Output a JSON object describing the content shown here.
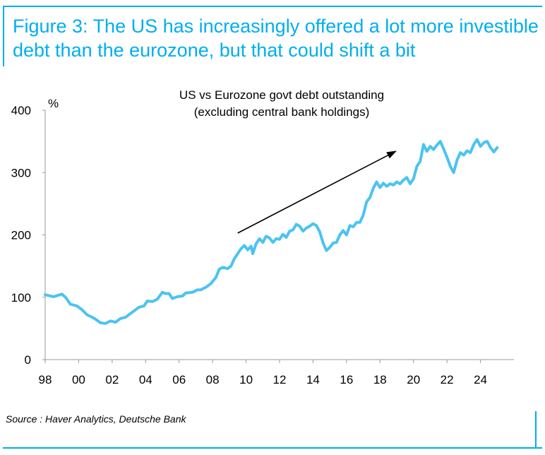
{
  "figure": {
    "title": "Figure 3: The US has increasingly offered a lot more investible debt than the eurozone, but that could shift a bit",
    "source": "Source : Haver Analytics, Deutsche Bank"
  },
  "colors": {
    "accent": "#00aeef",
    "series": "#4cc3f1",
    "axis": "#999999",
    "text": "#000000"
  },
  "chart_data": {
    "type": "line",
    "title_lines": [
      "US vs Eurozone govt debt outstanding",
      "(excluding central bank holdings)"
    ],
    "ylabel": "%",
    "xlabel": "",
    "xlim": [
      1998,
      2026
    ],
    "ylim": [
      0,
      400
    ],
    "yticks": [
      0,
      100,
      200,
      300,
      400
    ],
    "xticks": [
      {
        "value": 1998,
        "label": "98"
      },
      {
        "value": 2000,
        "label": "00"
      },
      {
        "value": 2002,
        "label": "02"
      },
      {
        "value": 2004,
        "label": "04"
      },
      {
        "value": 2006,
        "label": "06"
      },
      {
        "value": 2008,
        "label": "08"
      },
      {
        "value": 2010,
        "label": "10"
      },
      {
        "value": 2012,
        "label": "12"
      },
      {
        "value": 2014,
        "label": "14"
      },
      {
        "value": 2016,
        "label": "16"
      },
      {
        "value": 2018,
        "label": "18"
      },
      {
        "value": 2020,
        "label": "20"
      },
      {
        "value": 2022,
        "label": "22"
      },
      {
        "value": 2024,
        "label": "24"
      }
    ],
    "grid": false,
    "annotation": {
      "type": "arrow",
      "from": [
        2009.5,
        203
      ],
      "to": [
        2019.0,
        335
      ]
    },
    "series": [
      {
        "values": [
          [
            1998.0,
            104
          ],
          [
            1998.5,
            101
          ],
          [
            1999.0,
            105
          ],
          [
            1999.25,
            99
          ],
          [
            1999.5,
            89
          ],
          [
            1999.9,
            86
          ],
          [
            2000.2,
            80
          ],
          [
            2000.5,
            72
          ],
          [
            2000.8,
            68
          ],
          [
            2001.0,
            65
          ],
          [
            2001.3,
            59
          ],
          [
            2001.6,
            58
          ],
          [
            2001.9,
            62
          ],
          [
            2002.2,
            60
          ],
          [
            2002.5,
            66
          ],
          [
            2002.8,
            68
          ],
          [
            2003.0,
            72
          ],
          [
            2003.3,
            78
          ],
          [
            2003.6,
            84
          ],
          [
            2003.9,
            86
          ],
          [
            2004.1,
            94
          ],
          [
            2004.4,
            93
          ],
          [
            2004.7,
            97
          ],
          [
            2005.0,
            108
          ],
          [
            2005.2,
            106
          ],
          [
            2005.4,
            106
          ],
          [
            2005.6,
            98
          ],
          [
            2005.9,
            101
          ],
          [
            2006.2,
            102
          ],
          [
            2006.4,
            107
          ],
          [
            2006.8,
            108
          ],
          [
            2007.1,
            112
          ],
          [
            2007.3,
            112
          ],
          [
            2007.6,
            116
          ],
          [
            2007.9,
            122
          ],
          [
            2008.2,
            132
          ],
          [
            2008.4,
            145
          ],
          [
            2008.6,
            148
          ],
          [
            2008.9,
            146
          ],
          [
            2009.1,
            150
          ],
          [
            2009.3,
            162
          ],
          [
            2009.5,
            170
          ],
          [
            2009.7,
            178
          ],
          [
            2009.9,
            183
          ],
          [
            2010.1,
            176
          ],
          [
            2010.3,
            182
          ],
          [
            2010.4,
            170
          ],
          [
            2010.6,
            186
          ],
          [
            2010.8,
            194
          ],
          [
            2011.0,
            188
          ],
          [
            2011.2,
            198
          ],
          [
            2011.4,
            195
          ],
          [
            2011.6,
            188
          ],
          [
            2011.8,
            194
          ],
          [
            2012.0,
            193
          ],
          [
            2012.2,
            201
          ],
          [
            2012.4,
            196
          ],
          [
            2012.6,
            206
          ],
          [
            2012.8,
            208
          ],
          [
            2013.0,
            217
          ],
          [
            2013.2,
            214
          ],
          [
            2013.4,
            206
          ],
          [
            2013.6,
            211
          ],
          [
            2013.8,
            214
          ],
          [
            2014.0,
            218
          ],
          [
            2014.2,
            215
          ],
          [
            2014.4,
            205
          ],
          [
            2014.6,
            187
          ],
          [
            2014.8,
            175
          ],
          [
            2015.0,
            180
          ],
          [
            2015.2,
            187
          ],
          [
            2015.4,
            188
          ],
          [
            2015.6,
            200
          ],
          [
            2015.8,
            207
          ],
          [
            2016.0,
            200
          ],
          [
            2016.2,
            215
          ],
          [
            2016.4,
            213
          ],
          [
            2016.6,
            220
          ],
          [
            2016.8,
            220
          ],
          [
            2017.0,
            232
          ],
          [
            2017.2,
            253
          ],
          [
            2017.4,
            260
          ],
          [
            2017.6,
            275
          ],
          [
            2017.8,
            285
          ],
          [
            2018.0,
            276
          ],
          [
            2018.2,
            283
          ],
          [
            2018.4,
            278
          ],
          [
            2018.6,
            282
          ],
          [
            2018.8,
            280
          ],
          [
            2019.0,
            285
          ],
          [
            2019.2,
            282
          ],
          [
            2019.4,
            288
          ],
          [
            2019.6,
            292
          ],
          [
            2019.8,
            282
          ],
          [
            2020.0,
            290
          ],
          [
            2020.2,
            310
          ],
          [
            2020.4,
            318
          ],
          [
            2020.6,
            345
          ],
          [
            2020.8,
            334
          ],
          [
            2021.0,
            342
          ],
          [
            2021.2,
            337
          ],
          [
            2021.4,
            344
          ],
          [
            2021.6,
            350
          ],
          [
            2021.8,
            338
          ],
          [
            2022.0,
            325
          ],
          [
            2022.2,
            310
          ],
          [
            2022.4,
            300
          ],
          [
            2022.6,
            320
          ],
          [
            2022.8,
            332
          ],
          [
            2023.0,
            328
          ],
          [
            2023.2,
            335
          ],
          [
            2023.4,
            332
          ],
          [
            2023.6,
            345
          ],
          [
            2023.8,
            353
          ],
          [
            2024.0,
            342
          ],
          [
            2024.2,
            348
          ],
          [
            2024.4,
            350
          ],
          [
            2024.6,
            340
          ],
          [
            2024.8,
            333
          ],
          [
            2025.0,
            340
          ]
        ]
      }
    ]
  }
}
